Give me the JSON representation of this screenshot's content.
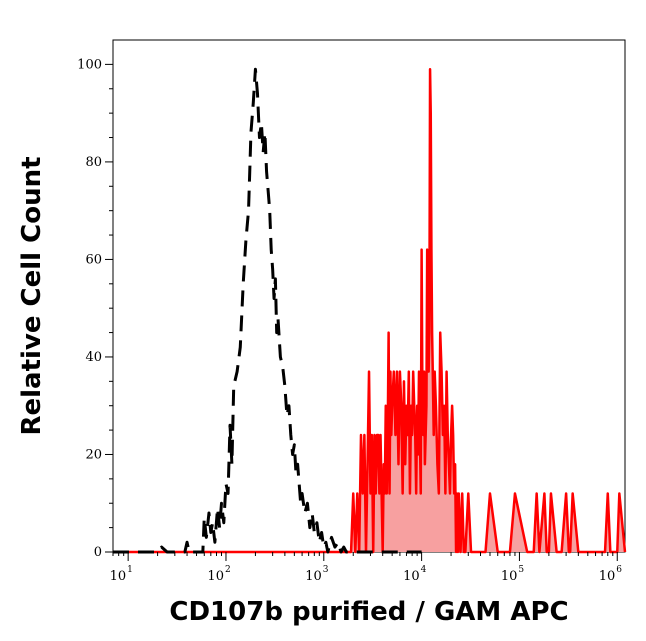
{
  "chart_data": {
    "type": "line",
    "title": "",
    "xlabel": "CD107b purified / GAM APC",
    "ylabel": "Relative Cell Count",
    "x_scale": "log",
    "xlim": [
      7,
      1200000
    ],
    "ylim": [
      0,
      105
    ],
    "x_ticks": [
      {
        "value": 10,
        "base": "10",
        "exp": "1"
      },
      {
        "value": 100,
        "base": "10",
        "exp": "2"
      },
      {
        "value": 1000,
        "base": "10",
        "exp": "3"
      },
      {
        "value": 10000,
        "base": "10",
        "exp": "4"
      },
      {
        "value": 100000,
        "base": "10",
        "exp": "5"
      },
      {
        "value": 1000000,
        "base": "10",
        "exp": "6"
      }
    ],
    "y_ticks": [
      {
        "value": 0,
        "label": "0"
      },
      {
        "value": 20,
        "label": "20"
      },
      {
        "value": 40,
        "label": "40"
      },
      {
        "value": 60,
        "label": "60"
      },
      {
        "value": 80,
        "label": "80"
      },
      {
        "value": 100,
        "label": "100"
      }
    ],
    "grid": false,
    "series": [
      {
        "style": "dashed",
        "color": "#000000",
        "filled": false,
        "x": [
          7,
          20,
          22,
          25,
          30,
          38,
          40,
          42,
          50,
          58,
          60,
          63,
          67,
          70,
          73,
          77,
          82,
          86,
          90,
          95,
          100,
          105,
          110,
          115,
          120,
          130,
          140,
          150,
          160,
          170,
          175,
          180,
          190,
          200,
          210,
          220,
          230,
          240,
          250,
          260,
          270,
          280,
          290,
          300,
          310,
          320,
          330,
          340,
          360,
          380,
          400,
          420,
          440,
          460,
          480,
          500,
          520,
          540,
          560,
          580,
          600,
          640,
          680,
          720,
          760,
          800,
          850,
          900,
          950,
          1000,
          1050,
          1100,
          1200,
          1300,
          1400,
          1500,
          1600,
          1700,
          1800,
          2000,
          2500,
          10000
        ],
        "y": [
          0,
          0,
          1,
          0,
          0,
          0,
          2,
          0,
          0,
          0,
          7,
          3,
          8,
          4,
          6,
          2,
          9,
          5,
          10,
          6,
          14,
          12,
          26,
          18,
          34,
          37,
          42,
          55,
          64,
          70,
          78,
          86,
          92,
          99,
          94,
          85,
          88,
          82,
          86,
          78,
          74,
          70,
          62,
          58,
          52,
          56,
          45,
          48,
          40,
          38,
          34,
          28,
          30,
          24,
          20,
          22,
          16,
          18,
          14,
          10,
          12,
          8,
          10,
          5,
          8,
          4,
          6,
          2,
          4,
          1,
          2,
          0,
          3,
          1,
          2,
          0,
          1,
          0,
          0,
          0,
          0,
          0
        ]
      },
      {
        "style": "solid",
        "color": "#ff0000",
        "fill": "#f7a0a0",
        "filled": true,
        "x": [
          7,
          1500,
          1600,
          1700,
          1800,
          1900,
          2000,
          2100,
          2200,
          2300,
          2400,
          2500,
          2600,
          2700,
          2800,
          2900,
          3000,
          3100,
          3200,
          3300,
          3400,
          3500,
          3600,
          3700,
          3800,
          3900,
          4000,
          4100,
          4200,
          4300,
          4400,
          4500,
          4600,
          4700,
          4800,
          4900,
          5000,
          5200,
          5400,
          5600,
          5800,
          6000,
          6200,
          6400,
          6600,
          6800,
          7000,
          7200,
          7400,
          7600,
          7800,
          8000,
          8200,
          8400,
          8600,
          8800,
          9000,
          9200,
          9400,
          9600,
          9800,
          10000,
          10200,
          10400,
          10600,
          10800,
          11000,
          11200,
          11400,
          11600,
          11800,
          12000,
          12200,
          12400,
          12600,
          12800,
          13000,
          13300,
          13600,
          14000,
          14500,
          15000,
          15500,
          16000,
          16500,
          17000,
          17500,
          18000,
          18500,
          19000,
          19500,
          20000,
          20500,
          21000,
          21500,
          22000,
          22500,
          23000,
          23500,
          24000,
          25000,
          26000,
          27000,
          28000,
          30000,
          32000,
          34000,
          36000,
          38000,
          40000,
          45000,
          50000,
          60000,
          70000,
          75000,
          80000,
          90000,
          120000,
          130000,
          140000,
          150000,
          160000,
          180000,
          190000,
          200000,
          210000,
          240000,
          250000,
          270000,
          300000,
          320000,
          330000,
          350000,
          400000,
          500000,
          700000,
          750000,
          800000,
          850000,
          900000,
          950000,
          1000000,
          1050000,
          1200000
        ],
        "y": [
          0,
          0,
          0,
          0,
          0,
          0,
          12,
          0,
          12,
          0,
          24,
          12,
          24,
          0,
          18,
          37,
          12,
          24,
          0,
          24,
          12,
          24,
          24,
          12,
          24,
          12,
          0,
          18,
          12,
          30,
          12,
          24,
          45,
          12,
          37,
          24,
          30,
          37,
          24,
          37,
          18,
          37,
          30,
          12,
          35,
          18,
          30,
          24,
          37,
          12,
          30,
          24,
          37,
          30,
          24,
          12,
          30,
          20,
          37,
          24,
          12,
          62,
          30,
          24,
          37,
          18,
          24,
          30,
          62,
          55,
          37,
          45,
          99,
          90,
          62,
          45,
          37,
          24,
          37,
          30,
          18,
          12,
          45,
          37,
          24,
          30,
          12,
          37,
          24,
          18,
          12,
          24,
          30,
          24,
          12,
          18,
          0,
          12,
          0,
          12,
          0,
          12,
          0,
          0,
          12,
          0,
          0,
          0,
          0,
          0,
          0,
          12,
          0,
          0,
          0,
          0,
          12,
          0,
          0,
          0,
          12,
          0,
          12,
          0,
          0,
          12,
          0,
          0,
          0,
          12,
          0,
          0,
          12,
          0,
          0,
          0,
          0,
          12,
          0,
          0,
          0,
          0,
          12,
          0
        ]
      }
    ]
  }
}
